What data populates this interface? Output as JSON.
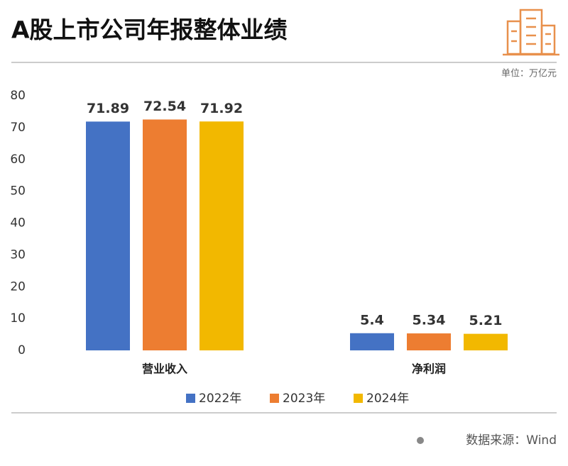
{
  "chart_data": {
    "type": "bar",
    "title": "A股上市公司年报整体业绩",
    "unit_label": "单位：万亿元",
    "source": "数据来源：Wind",
    "categories": [
      "营业收入",
      "净利润"
    ],
    "series": [
      {
        "name": "2022年",
        "color": "#4472c4",
        "values": [
          71.89,
          5.4
        ]
      },
      {
        "name": "2023年",
        "color": "#ed7d31",
        "values": [
          72.54,
          5.34
        ]
      },
      {
        "name": "2024年",
        "color": "#f2b800",
        "values": [
          71.92,
          5.21
        ]
      }
    ],
    "ylim": [
      0,
      80
    ],
    "yticks": [
      0,
      10,
      20,
      30,
      40,
      50,
      60,
      70,
      80
    ],
    "grid": false
  }
}
